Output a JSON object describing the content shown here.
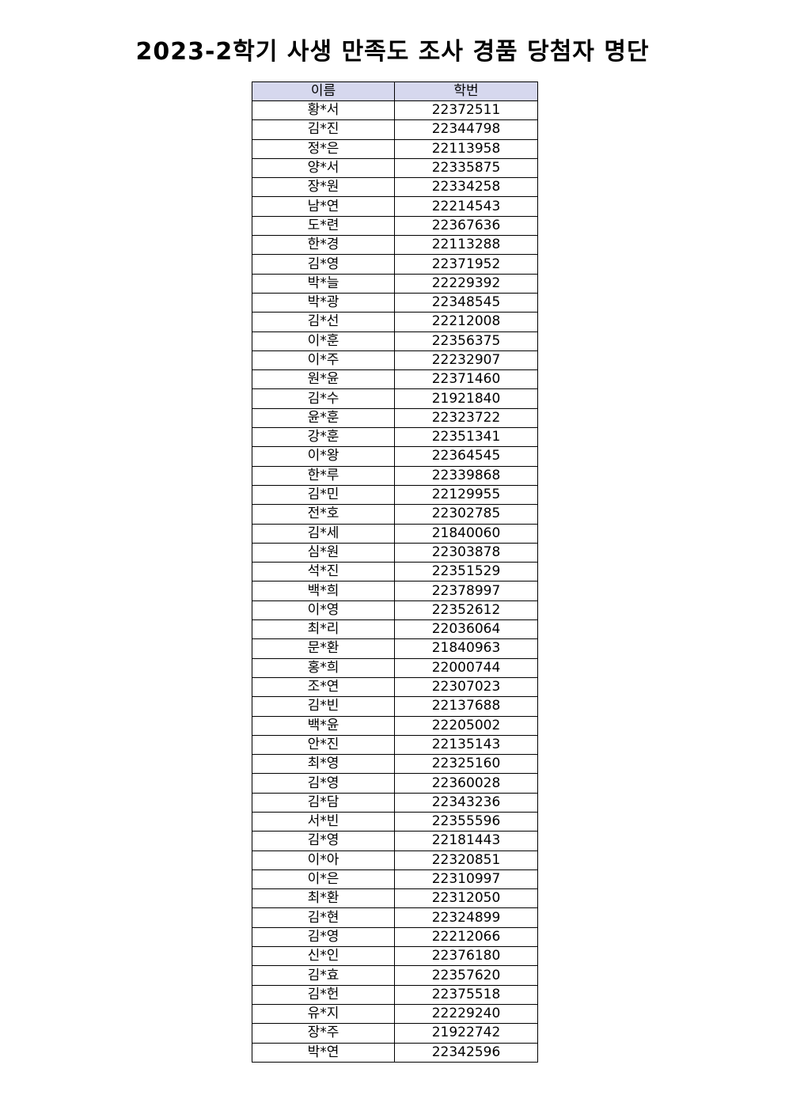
{
  "title": "2023-2학기 사생 만족도 조사 경품 당첨자 명단",
  "table": {
    "headers": [
      "이름",
      "학번"
    ],
    "header_bg": "#d6d8ee",
    "rows": [
      [
        "황*서",
        "22372511"
      ],
      [
        "김*진",
        "22344798"
      ],
      [
        "정*은",
        "22113958"
      ],
      [
        "양*서",
        "22335875"
      ],
      [
        "장*원",
        "22334258"
      ],
      [
        "남*연",
        "22214543"
      ],
      [
        "도*련",
        "22367636"
      ],
      [
        "한*경",
        "22113288"
      ],
      [
        "김*영",
        "22371952"
      ],
      [
        "박*늘",
        "22229392"
      ],
      [
        "박*광",
        "22348545"
      ],
      [
        "김*선",
        "22212008"
      ],
      [
        "이*훈",
        "22356375"
      ],
      [
        "이*주",
        "22232907"
      ],
      [
        "원*윤",
        "22371460"
      ],
      [
        "김*수",
        "21921840"
      ],
      [
        "윤*훈",
        "22323722"
      ],
      [
        "강*훈",
        "22351341"
      ],
      [
        "이*왕",
        "22364545"
      ],
      [
        "한*루",
        "22339868"
      ],
      [
        "김*민",
        "22129955"
      ],
      [
        "전*호",
        "22302785"
      ],
      [
        "김*세",
        "21840060"
      ],
      [
        "심*원",
        "22303878"
      ],
      [
        "석*진",
        "22351529"
      ],
      [
        "백*희",
        "22378997"
      ],
      [
        "이*영",
        "22352612"
      ],
      [
        "최*리",
        "22036064"
      ],
      [
        "문*환",
        "21840963"
      ],
      [
        "홍*희",
        "22000744"
      ],
      [
        "조*연",
        "22307023"
      ],
      [
        "김*빈",
        "22137688"
      ],
      [
        "백*윤",
        "22205002"
      ],
      [
        "안*진",
        "22135143"
      ],
      [
        "최*영",
        "22325160"
      ],
      [
        "김*영",
        "22360028"
      ],
      [
        "김*담",
        "22343236"
      ],
      [
        "서*빈",
        "22355596"
      ],
      [
        "김*영",
        "22181443"
      ],
      [
        "이*아",
        "22320851"
      ],
      [
        "이*은",
        "22310997"
      ],
      [
        "최*환",
        "22312050"
      ],
      [
        "김*현",
        "22324899"
      ],
      [
        "김*영",
        "22212066"
      ],
      [
        "신*인",
        "22376180"
      ],
      [
        "김*효",
        "22357620"
      ],
      [
        "김*헌",
        "22375518"
      ],
      [
        "유*지",
        "22229240"
      ],
      [
        "장*주",
        "21922742"
      ],
      [
        "박*연",
        "22342596"
      ]
    ]
  }
}
